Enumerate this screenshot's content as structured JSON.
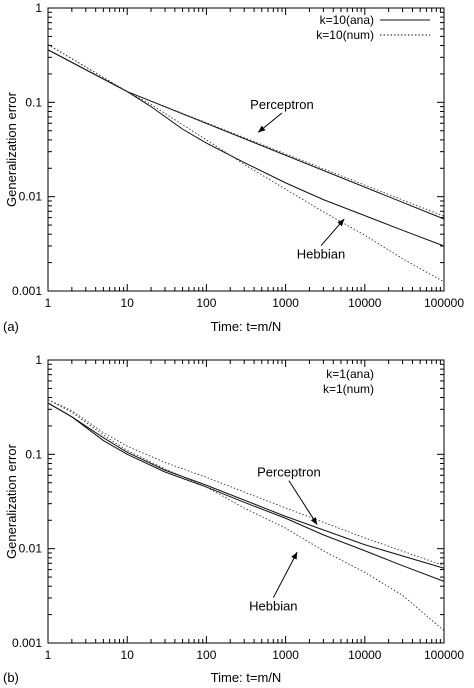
{
  "chart_data": [
    {
      "type": "line",
      "panel_label": "(a)",
      "xlabel": "Time: t=m/N",
      "ylabel": "Generalization error",
      "x_scale": "log",
      "y_scale": "log",
      "xlim": [
        1,
        100000
      ],
      "ylim": [
        0.001,
        1
      ],
      "x_ticks": [
        1,
        10,
        100,
        1000,
        10000,
        100000
      ],
      "x_tick_labels": [
        "1",
        "10",
        "100",
        "1000",
        "10000",
        "100000"
      ],
      "y_ticks": [
        0.001,
        0.01,
        0.1,
        1
      ],
      "y_tick_labels": [
        "0.001",
        "0.01",
        "0.1",
        "1"
      ],
      "legend": {
        "position": "top-right",
        "entries": [
          {
            "label": "k=10(ana)",
            "style": "solid"
          },
          {
            "label": "k=10(num)",
            "style": "dotted"
          }
        ]
      },
      "annotations": [
        {
          "text": "Perceptron",
          "x": 900,
          "y": 0.085,
          "arrow_to_x": 450,
          "arrow_to_y": 0.048
        },
        {
          "text": "Hebbian",
          "x": 2800,
          "y": 0.0022,
          "arrow_to_x": 5500,
          "arrow_to_y": 0.0058
        }
      ],
      "series": [
        {
          "group": "Perceptron",
          "style": "solid",
          "x": [
            1,
            10,
            100000
          ],
          "y": [
            0.36,
            0.13,
            0.0058
          ]
        },
        {
          "group": "Perceptron",
          "style": "dotted",
          "x": [
            1,
            10,
            100000
          ],
          "y": [
            0.41,
            0.13,
            0.0062
          ]
        },
        {
          "group": "Hebbian",
          "style": "solid",
          "x": [
            1,
            10,
            20,
            50,
            100,
            300,
            1000,
            3000,
            10000,
            30000,
            100000
          ],
          "y": [
            0.36,
            0.13,
            0.09,
            0.052,
            0.037,
            0.023,
            0.014,
            0.0093,
            0.0063,
            0.0044,
            0.003
          ]
        },
        {
          "group": "Hebbian",
          "style": "dotted",
          "x": [
            1,
            10,
            20,
            50,
            100,
            300,
            1000,
            3000,
            10000,
            30000,
            100000
          ],
          "y": [
            0.41,
            0.13,
            0.095,
            0.058,
            0.04,
            0.022,
            0.012,
            0.0069,
            0.0039,
            0.0022,
            0.00125
          ]
        }
      ]
    },
    {
      "type": "line",
      "panel_label": "(b)",
      "xlabel": "Time: t=m/N",
      "ylabel": "Generalization error",
      "x_scale": "log",
      "y_scale": "log",
      "xlim": [
        1,
        100000
      ],
      "ylim": [
        0.001,
        1
      ],
      "x_ticks": [
        1,
        10,
        100,
        1000,
        10000,
        100000
      ],
      "x_tick_labels": [
        "1",
        "10",
        "100",
        "1000",
        "10000",
        "100000"
      ],
      "y_ticks": [
        0.001,
        0.01,
        0.1,
        1
      ],
      "y_tick_labels": [
        "0.001",
        "0.01",
        "0.1",
        "1"
      ],
      "legend": {
        "position": "top-right",
        "entries": [
          {
            "label": "k=1(ana)",
            "style": "solid"
          },
          {
            "label": "k=1(num)",
            "style": "dotted"
          }
        ]
      },
      "annotations": [
        {
          "text": "Perceptron",
          "x": 1100,
          "y": 0.058,
          "arrow_to_x": 2500,
          "arrow_to_y": 0.018
        },
        {
          "text": "Hebbian",
          "x": 700,
          "y": 0.0022,
          "arrow_to_x": 1400,
          "arrow_to_y": 0.0092
        }
      ],
      "series": [
        {
          "group": "Perceptron",
          "style": "solid",
          "x": [
            1,
            2,
            5,
            10,
            30,
            100,
            1000,
            10000,
            100000
          ],
          "y": [
            0.35,
            0.25,
            0.15,
            0.105,
            0.068,
            0.047,
            0.022,
            0.011,
            0.0062
          ]
        },
        {
          "group": "Perceptron",
          "style": "dotted",
          "x": [
            1,
            2,
            5,
            10,
            30,
            100,
            1000,
            10000,
            100000
          ],
          "y": [
            0.38,
            0.29,
            0.17,
            0.122,
            0.082,
            0.057,
            0.027,
            0.013,
            0.0066
          ]
        },
        {
          "group": "Hebbian",
          "style": "solid",
          "x": [
            1,
            2,
            5,
            10,
            30,
            100,
            300,
            1000,
            3000,
            10000,
            30000,
            100000
          ],
          "y": [
            0.35,
            0.25,
            0.14,
            0.1,
            0.065,
            0.045,
            0.031,
            0.021,
            0.014,
            0.0095,
            0.0066,
            0.0045
          ]
        },
        {
          "group": "Hebbian",
          "style": "dotted",
          "x": [
            1,
            2,
            5,
            10,
            30,
            100,
            300,
            1000,
            3000,
            10000,
            30000,
            100000
          ],
          "y": [
            0.38,
            0.28,
            0.16,
            0.11,
            0.07,
            0.045,
            0.027,
            0.0165,
            0.0095,
            0.0056,
            0.0032,
            0.00135
          ]
        }
      ]
    }
  ]
}
